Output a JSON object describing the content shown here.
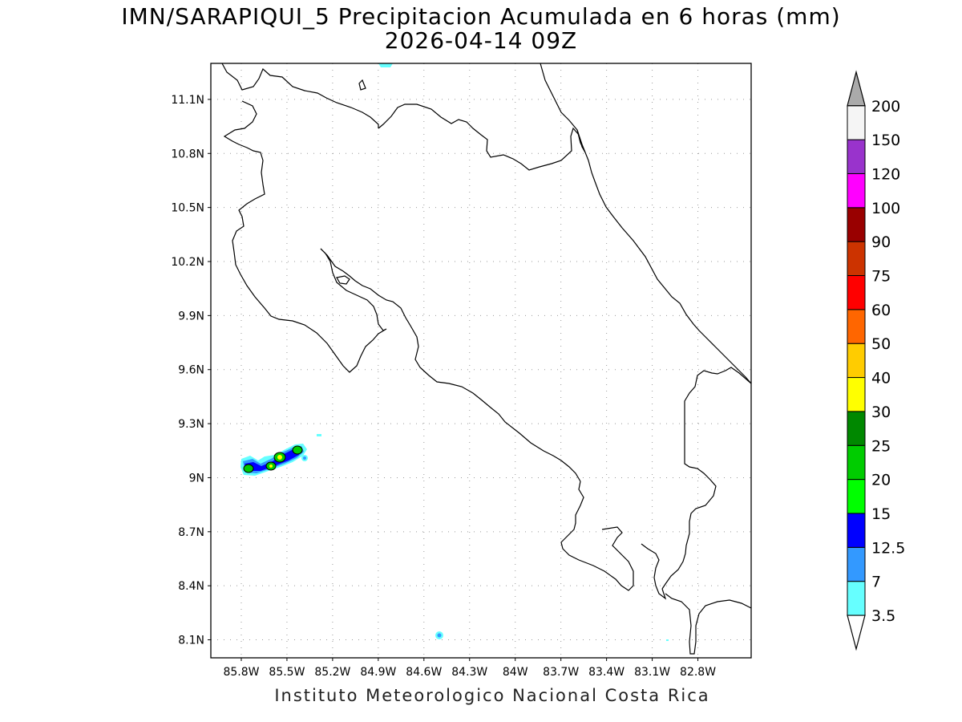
{
  "title": {
    "line1": "IMN/SARAPIQUI_5 Precipitacion Acumulada en 6 horas (mm)",
    "line2": "2026-04-14 09Z"
  },
  "footer": "Instituto Meteorologico Nacional Costa Rica",
  "map": {
    "lon_range": [
      -86.0,
      -82.45
    ],
    "lat_range": [
      8.0,
      11.3
    ],
    "lat_ticks": [
      {
        "value": 8.1,
        "label": "8.1N"
      },
      {
        "value": 8.4,
        "label": "8.4N"
      },
      {
        "value": 8.7,
        "label": "8.7N"
      },
      {
        "value": 9.0,
        "label": "9N"
      },
      {
        "value": 9.3,
        "label": "9.3N"
      },
      {
        "value": 9.6,
        "label": "9.6N"
      },
      {
        "value": 9.9,
        "label": "9.9N"
      },
      {
        "value": 10.2,
        "label": "10.2N"
      },
      {
        "value": 10.5,
        "label": "10.5N"
      },
      {
        "value": 10.8,
        "label": "10.8N"
      },
      {
        "value": 11.1,
        "label": "11.1N"
      }
    ],
    "lon_ticks": [
      {
        "value": -85.8,
        "label": "85.8W"
      },
      {
        "value": -85.5,
        "label": "85.5W"
      },
      {
        "value": -85.2,
        "label": "85.2W"
      },
      {
        "value": -84.9,
        "label": "84.9W"
      },
      {
        "value": -84.6,
        "label": "84.6W"
      },
      {
        "value": -84.3,
        "label": "84.3W"
      },
      {
        "value": -84.0,
        "label": "84W"
      },
      {
        "value": -83.7,
        "label": "83.7W"
      },
      {
        "value": -83.4,
        "label": "83.4W"
      },
      {
        "value": -83.1,
        "label": "83.1W"
      },
      {
        "value": -82.8,
        "label": "82.8W"
      }
    ],
    "grid": true
  },
  "colorbar": {
    "levels": [
      {
        "label": "3.5",
        "color": "#66ffff"
      },
      {
        "label": "7",
        "color": "#3399ff"
      },
      {
        "label": "12.5",
        "color": "#0000ff"
      },
      {
        "label": "15",
        "color": "#00ff00"
      },
      {
        "label": "20",
        "color": "#00cc00"
      },
      {
        "label": "25",
        "color": "#008800"
      },
      {
        "label": "30",
        "color": "#ffff00"
      },
      {
        "label": "40",
        "color": "#ffcc00"
      },
      {
        "label": "50",
        "color": "#ff6600"
      },
      {
        "label": "60",
        "color": "#ff0000"
      },
      {
        "label": "75",
        "color": "#cc3300"
      },
      {
        "label": "90",
        "color": "#990000"
      },
      {
        "label": "100",
        "color": "#ff00ff"
      },
      {
        "label": "120",
        "color": "#9933cc"
      },
      {
        "label": "150",
        "color": "#f5f5f5"
      },
      {
        "label": "200",
        "color": "#aaaaaa"
      }
    ]
  }
}
